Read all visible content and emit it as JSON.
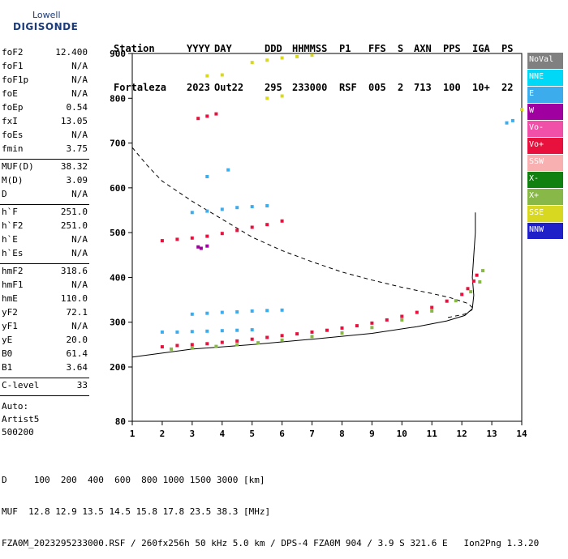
{
  "logo": {
    "line1": "Lowell",
    "line2": "DIGISONDE"
  },
  "header": {
    "labels": [
      "Station",
      "YYYY",
      "DAY",
      "DDD",
      "HHMMSS",
      "P1",
      "FFS",
      "S",
      "AXN",
      "PPS",
      "IGA",
      "PS"
    ],
    "values": [
      "Fortaleza",
      "2023",
      "Out22",
      "295",
      "233000",
      "RSF",
      "005",
      "2",
      "713",
      "100",
      "10+",
      "22"
    ]
  },
  "params": [
    {
      "name": "foF2",
      "value": "12.400"
    },
    {
      "name": "foF1",
      "value": "N/A"
    },
    {
      "name": "foF1p",
      "value": "N/A"
    },
    {
      "name": "foE",
      "value": "N/A"
    },
    {
      "name": "foEp",
      "value": "0.54"
    },
    {
      "name": "fxI",
      "value": "13.05"
    },
    {
      "name": "foEs",
      "value": "N/A"
    },
    {
      "name": "fmin",
      "value": "3.75"
    },
    {
      "name": "MUF(D)",
      "value": "38.32"
    },
    {
      "name": "M(D)",
      "value": "3.09"
    },
    {
      "name": "D",
      "value": "N/A"
    },
    {
      "name": "h`F",
      "value": "251.0"
    },
    {
      "name": "h`F2",
      "value": "251.0"
    },
    {
      "name": "h`E",
      "value": "N/A"
    },
    {
      "name": "h`Es",
      "value": "N/A"
    },
    {
      "name": "hmF2",
      "value": "318.6"
    },
    {
      "name": "hmF1",
      "value": "N/A"
    },
    {
      "name": "hmE",
      "value": "110.0"
    },
    {
      "name": "yF2",
      "value": "72.1"
    },
    {
      "name": "yF1",
      "value": "N/A"
    },
    {
      "name": "yE",
      "value": "20.0"
    },
    {
      "name": "B0",
      "value": "61.4"
    },
    {
      "name": "B1",
      "value": "3.64"
    },
    {
      "name": "C-level",
      "value": "33"
    }
  ],
  "auto": {
    "line1": "Auto:",
    "line2": "Artist5",
    "line3": "500200"
  },
  "legend": [
    {
      "label": "NoVal",
      "color": "#808080"
    },
    {
      "label": "NNE",
      "color": "#00d8f8"
    },
    {
      "label": "E",
      "color": "#3cacec"
    },
    {
      "label": "W",
      "color": "#a000a0"
    },
    {
      "label": "Vo-",
      "color": "#f050a8"
    },
    {
      "label": "Vo+",
      "color": "#e8103c"
    },
    {
      "label": "SSW",
      "color": "#f8b0b0"
    },
    {
      "label": "X-",
      "color": "#108010"
    },
    {
      "label": "X+",
      "color": "#88b848"
    },
    {
      "label": "SSE",
      "color": "#d8d820"
    },
    {
      "label": "NNW",
      "color": "#2020c8"
    }
  ],
  "bottom": {
    "line1": "D     100  200  400  600  800 1000 1500 3000 [km]",
    "line2": "MUF  12.8 12.9 13.5 14.5 15.8 17.8 23.5 38.3 [MHz]",
    "line3": "FZA0M_2023295233000.RSF / 260fx256h 50 kHz 5.0 km / DPS-4 FZA0M 904 / 3.9 S 321.6 E   Ion2Png 1.3.20"
  },
  "chart_data": {
    "type": "scatter",
    "xlabel": "",
    "ylabel": "",
    "xlim": [
      1,
      14
    ],
    "ylim": [
      80,
      900
    ],
    "x_ticks": [
      1,
      2,
      3,
      4,
      5,
      6,
      7,
      8,
      9,
      10,
      11,
      12,
      13,
      14
    ],
    "y_ticks": [
      80,
      200,
      300,
      400,
      500,
      600,
      700,
      800,
      900
    ],
    "series": [
      {
        "name": "Vo+",
        "color": "#e8103c",
        "points": [
          [
            2.0,
            245
          ],
          [
            2.5,
            248
          ],
          [
            3.0,
            250
          ],
          [
            3.5,
            252
          ],
          [
            4.0,
            255
          ],
          [
            4.5,
            258
          ],
          [
            5.0,
            262
          ],
          [
            5.5,
            266
          ],
          [
            6.0,
            270
          ],
          [
            6.5,
            274
          ],
          [
            7.0,
            278
          ],
          [
            7.5,
            282
          ],
          [
            8.0,
            287
          ],
          [
            8.5,
            292
          ],
          [
            9.0,
            298
          ],
          [
            9.5,
            305
          ],
          [
            10.0,
            313
          ],
          [
            10.5,
            322
          ],
          [
            11.0,
            333
          ],
          [
            11.5,
            347
          ],
          [
            12.0,
            362
          ],
          [
            12.2,
            375
          ],
          [
            12.4,
            392
          ],
          [
            12.5,
            405
          ],
          [
            2.0,
            482
          ],
          [
            2.5,
            485
          ],
          [
            3.0,
            488
          ],
          [
            3.5,
            492
          ],
          [
            4.0,
            498
          ],
          [
            4.5,
            505
          ],
          [
            5.0,
            512
          ],
          [
            5.5,
            518
          ],
          [
            6.0,
            526
          ],
          [
            3.2,
            755
          ],
          [
            3.5,
            760
          ],
          [
            3.8,
            765
          ]
        ]
      },
      {
        "name": "X+",
        "color": "#88b848",
        "points": [
          [
            2.3,
            240
          ],
          [
            3.0,
            243
          ],
          [
            3.8,
            246
          ],
          [
            4.5,
            250
          ],
          [
            5.2,
            254
          ],
          [
            6.0,
            260
          ],
          [
            7.0,
            268
          ],
          [
            8.0,
            276
          ],
          [
            9.0,
            288
          ],
          [
            10.0,
            305
          ],
          [
            11.0,
            325
          ],
          [
            11.8,
            348
          ],
          [
            12.3,
            368
          ],
          [
            12.6,
            390
          ],
          [
            12.7,
            415
          ]
        ]
      },
      {
        "name": "E",
        "color": "#3cacec",
        "points": [
          [
            2.0,
            278
          ],
          [
            2.5,
            278
          ],
          [
            3.0,
            279
          ],
          [
            3.5,
            280
          ],
          [
            4.0,
            281
          ],
          [
            4.5,
            282
          ],
          [
            5.0,
            283
          ],
          [
            3.0,
            318
          ],
          [
            3.5,
            320
          ],
          [
            4.0,
            322
          ],
          [
            4.5,
            323
          ],
          [
            5.0,
            325
          ],
          [
            5.5,
            326
          ],
          [
            6.0,
            327
          ],
          [
            3.0,
            545
          ],
          [
            3.5,
            548
          ],
          [
            4.0,
            552
          ],
          [
            4.5,
            556
          ],
          [
            5.0,
            558
          ],
          [
            5.5,
            560
          ],
          [
            3.5,
            625
          ],
          [
            4.2,
            640
          ],
          [
            13.5,
            745
          ],
          [
            13.7,
            750
          ]
        ]
      },
      {
        "name": "SSE",
        "color": "#d8d820",
        "points": [
          [
            5.0,
            880
          ],
          [
            5.5,
            885
          ],
          [
            6.0,
            890
          ],
          [
            6.5,
            893
          ],
          [
            7.0,
            896
          ],
          [
            3.5,
            850
          ],
          [
            4.0,
            852
          ],
          [
            5.5,
            800
          ],
          [
            6.0,
            805
          ],
          [
            14.0,
            775
          ]
        ]
      },
      {
        "name": "W",
        "color": "#a000a0",
        "points": [
          [
            3.2,
            468
          ],
          [
            3.5,
            470
          ],
          [
            3.3,
            465
          ]
        ]
      }
    ],
    "curves": [
      {
        "name": "profile",
        "style": "solid",
        "points": [
          [
            1.0,
            222
          ],
          [
            3.0,
            240
          ],
          [
            5.0,
            250
          ],
          [
            7.0,
            262
          ],
          [
            9.0,
            275
          ],
          [
            10.5,
            290
          ],
          [
            11.5,
            303
          ],
          [
            12.1,
            315
          ],
          [
            12.35,
            330
          ],
          [
            12.4,
            360
          ],
          [
            12.35,
            400
          ],
          [
            12.4,
            450
          ],
          [
            12.45,
            500
          ],
          [
            12.45,
            545
          ]
        ]
      },
      {
        "name": "hmf2-curve",
        "style": "dashed",
        "points": [
          [
            1.0,
            690
          ],
          [
            1.5,
            650
          ],
          [
            2.0,
            615
          ],
          [
            3.0,
            570
          ],
          [
            4.0,
            530
          ],
          [
            5.0,
            490
          ],
          [
            6.0,
            460
          ],
          [
            7.0,
            435
          ],
          [
            8.0,
            412
          ],
          [
            9.0,
            394
          ],
          [
            10.0,
            378
          ],
          [
            11.0,
            364
          ],
          [
            11.6,
            355
          ],
          [
            12.2,
            342
          ],
          [
            12.4,
            330
          ],
          [
            12.1,
            318
          ],
          [
            11.5,
            310
          ]
        ]
      }
    ]
  }
}
